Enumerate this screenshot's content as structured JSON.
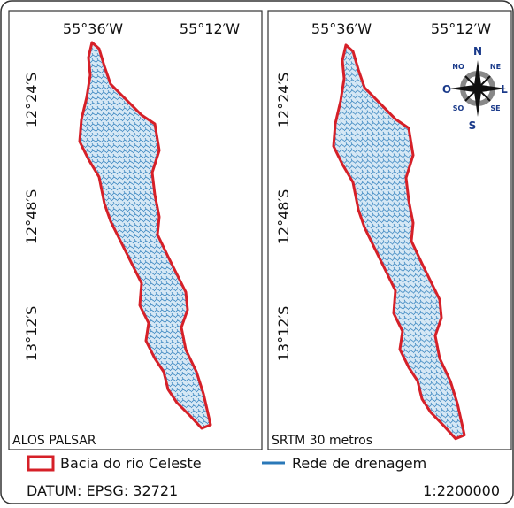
{
  "panels": [
    {
      "title": "ALOS PALSAR",
      "lon_labels": [
        "55°36′W",
        "55°12′W"
      ],
      "lat_labels": [
        "12°24′S",
        "12°48′S",
        "13°12′S"
      ]
    },
    {
      "title": "SRTM 30 metros",
      "lon_labels": [
        "55°36′W",
        "55°12′W"
      ],
      "lat_labels": [
        "12°24′S",
        "12°48′S",
        "13°12′S"
      ]
    }
  ],
  "compass": {
    "north": "N",
    "south": "S",
    "east": "L",
    "west": "O",
    "northeast": "NE",
    "northwest": "NO",
    "southeast": "SE",
    "southwest": "SO"
  },
  "legend": [
    "Bacia do rio Celeste",
    "Rede de drenagem"
  ],
  "datum": "DATUM: EPSG: 32721",
  "scale": "1:2200000"
}
